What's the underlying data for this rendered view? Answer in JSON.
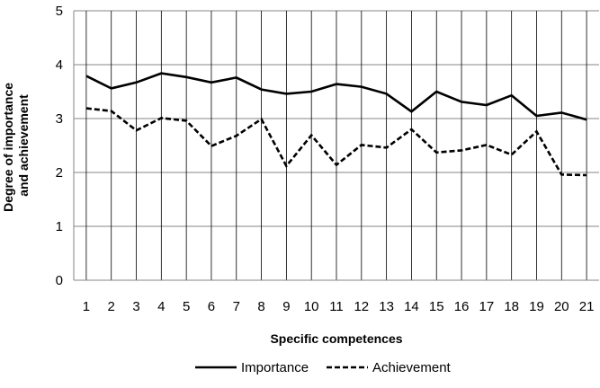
{
  "chart_data": {
    "type": "line",
    "title": "",
    "xlabel": "Specific competences",
    "ylabel": "Degree of importance and  achievement",
    "ylabel_lines": [
      "Degree of importance",
      "and  achievement"
    ],
    "ylim": [
      0,
      5
    ],
    "yticks": [
      0,
      1,
      2,
      3,
      4,
      5
    ],
    "x": [
      "1",
      "2",
      "3",
      "4",
      "5",
      "6",
      "7",
      "8",
      "9",
      "10",
      "11",
      "12",
      "13",
      "14",
      "15",
      "16",
      "17",
      "18",
      "19",
      "20",
      "21"
    ],
    "grid": "horizontal and vertical",
    "legend_position": "bottom",
    "series": [
      {
        "name": "Importance",
        "style": "solid",
        "color": "#000000",
        "values": [
          3.79,
          3.56,
          3.67,
          3.84,
          3.77,
          3.67,
          3.76,
          3.54,
          3.46,
          3.5,
          3.64,
          3.59,
          3.46,
          3.13,
          3.5,
          3.31,
          3.25,
          3.43,
          3.05,
          3.11,
          2.98
        ]
      },
      {
        "name": "Achievement",
        "style": "dashed",
        "color": "#000000",
        "values": [
          3.19,
          3.14,
          2.78,
          3.01,
          2.96,
          2.49,
          2.68,
          2.99,
          2.12,
          2.69,
          2.14,
          2.51,
          2.46,
          2.8,
          2.37,
          2.41,
          2.51,
          2.33,
          2.76,
          1.96,
          1.95
        ]
      }
    ]
  }
}
